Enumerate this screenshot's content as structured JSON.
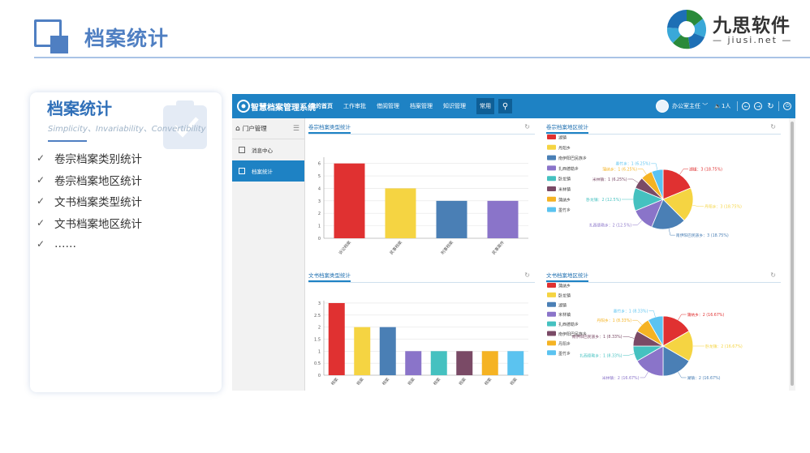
{
  "slide": {
    "title": "档案统计",
    "brand_name": "九思软件",
    "brand_url": "— jiusi.net —"
  },
  "card": {
    "title": "档案统计",
    "subtitle": "Simplicity、Invariability、Convertibility",
    "items": [
      "卷宗档案类别统计",
      "卷宗档案地区统计",
      "文书档案类型统计",
      "文书档案地区统计",
      "……"
    ]
  },
  "app": {
    "name": "智慧档案管理系统",
    "nav": [
      "我的首页",
      "工作审批",
      "借阅管理",
      "档案管理",
      "知识管理",
      "常用"
    ],
    "user": "办公室主任",
    "online": "1人",
    "sidebar_header": "门户管理",
    "sidebar_items": [
      "消息中心",
      "档案统计"
    ]
  },
  "colors": {
    "primary": "#1e82c4",
    "accent": "#4f7fc2"
  },
  "chart_data": [
    {
      "type": "bar",
      "title": "卷宗档案类型统计",
      "categories": [
        "诉讼档案",
        "民事档案",
        "刑事档案",
        "民事案件"
      ],
      "values": [
        6,
        4,
        3,
        3
      ],
      "colors": [
        "#e03131",
        "#f5d442",
        "#4a7fb5",
        "#8a74c9"
      ],
      "yticks": [
        0,
        1,
        2,
        3,
        4,
        5,
        6
      ],
      "ylim": [
        0,
        6.5
      ]
    },
    {
      "type": "pie",
      "title": "卷宗档案地区统计",
      "legend": [
        "湖镇",
        "丹阳乡",
        "南伊阳巴民族乡",
        "扎西德勒乡",
        "卧龙镇",
        "米林镇",
        "蒲纳乡",
        "墨竹乡"
      ],
      "values": [
        3,
        3,
        3,
        2,
        2,
        1,
        1,
        1
      ],
      "colors": [
        "#e03131",
        "#f5d442",
        "#4a7fb5",
        "#8a74c9",
        "#45c1c0",
        "#7a4a66",
        "#f5b323",
        "#5bc3f0"
      ],
      "labels": [
        "湖镇：3 (18.75%)",
        "丹阳乡：3 (18.75%)",
        "南伊阳巴民族乡：3 (18.75%)",
        "扎西德勒乡：2 (12.5%)",
        "卧龙镇：2 (12.5%)",
        "米林镇：1 (6.25%)",
        "蒲纳乡：1 (6.25%)",
        "墨竹乡：1 (6.25%)"
      ]
    },
    {
      "type": "bar",
      "title": "文书档案类型统计",
      "categories": [
        "档案",
        "档案",
        "档案",
        "档案",
        "档案",
        "档案",
        "档案",
        "档案"
      ],
      "values": [
        3,
        2,
        2,
        1,
        1,
        1,
        1,
        1
      ],
      "colors": [
        "#e03131",
        "#f5d442",
        "#4a7fb5",
        "#8a74c9",
        "#45c1c0",
        "#7a4a66",
        "#f5b323",
        "#5bc3f0"
      ],
      "yticks": [
        0,
        0.5,
        1,
        1.5,
        2,
        2.5,
        3
      ],
      "ylim": [
        0,
        3.1
      ]
    },
    {
      "type": "pie",
      "title": "文书档案地区统计",
      "legend": [
        "蒲纳乡",
        "卧龙镇",
        "湖镇",
        "米林镇",
        "扎西德勒乡",
        "南伊阳巴民族乡",
        "丹阳乡",
        "墨竹乡"
      ],
      "values": [
        2,
        2,
        2,
        2,
        1,
        1,
        1,
        1
      ],
      "colors": [
        "#e03131",
        "#f5d442",
        "#4a7fb5",
        "#8a74c9",
        "#45c1c0",
        "#7a4a66",
        "#f5b323",
        "#5bc3f0"
      ],
      "labels": [
        "蒲纳乡：2 (16.67%)",
        "卧龙镇：2 (16.67%)",
        "湖镇：2 (16.67%)",
        "米林镇：2 (16.67%)",
        "扎西德勒乡：1 (8.33%)",
        "南伊阳巴民族乡：1 (8.33%)",
        "丹阳乡：1 (8.33%)",
        "墨竹乡：1 (8.33%)"
      ]
    }
  ]
}
